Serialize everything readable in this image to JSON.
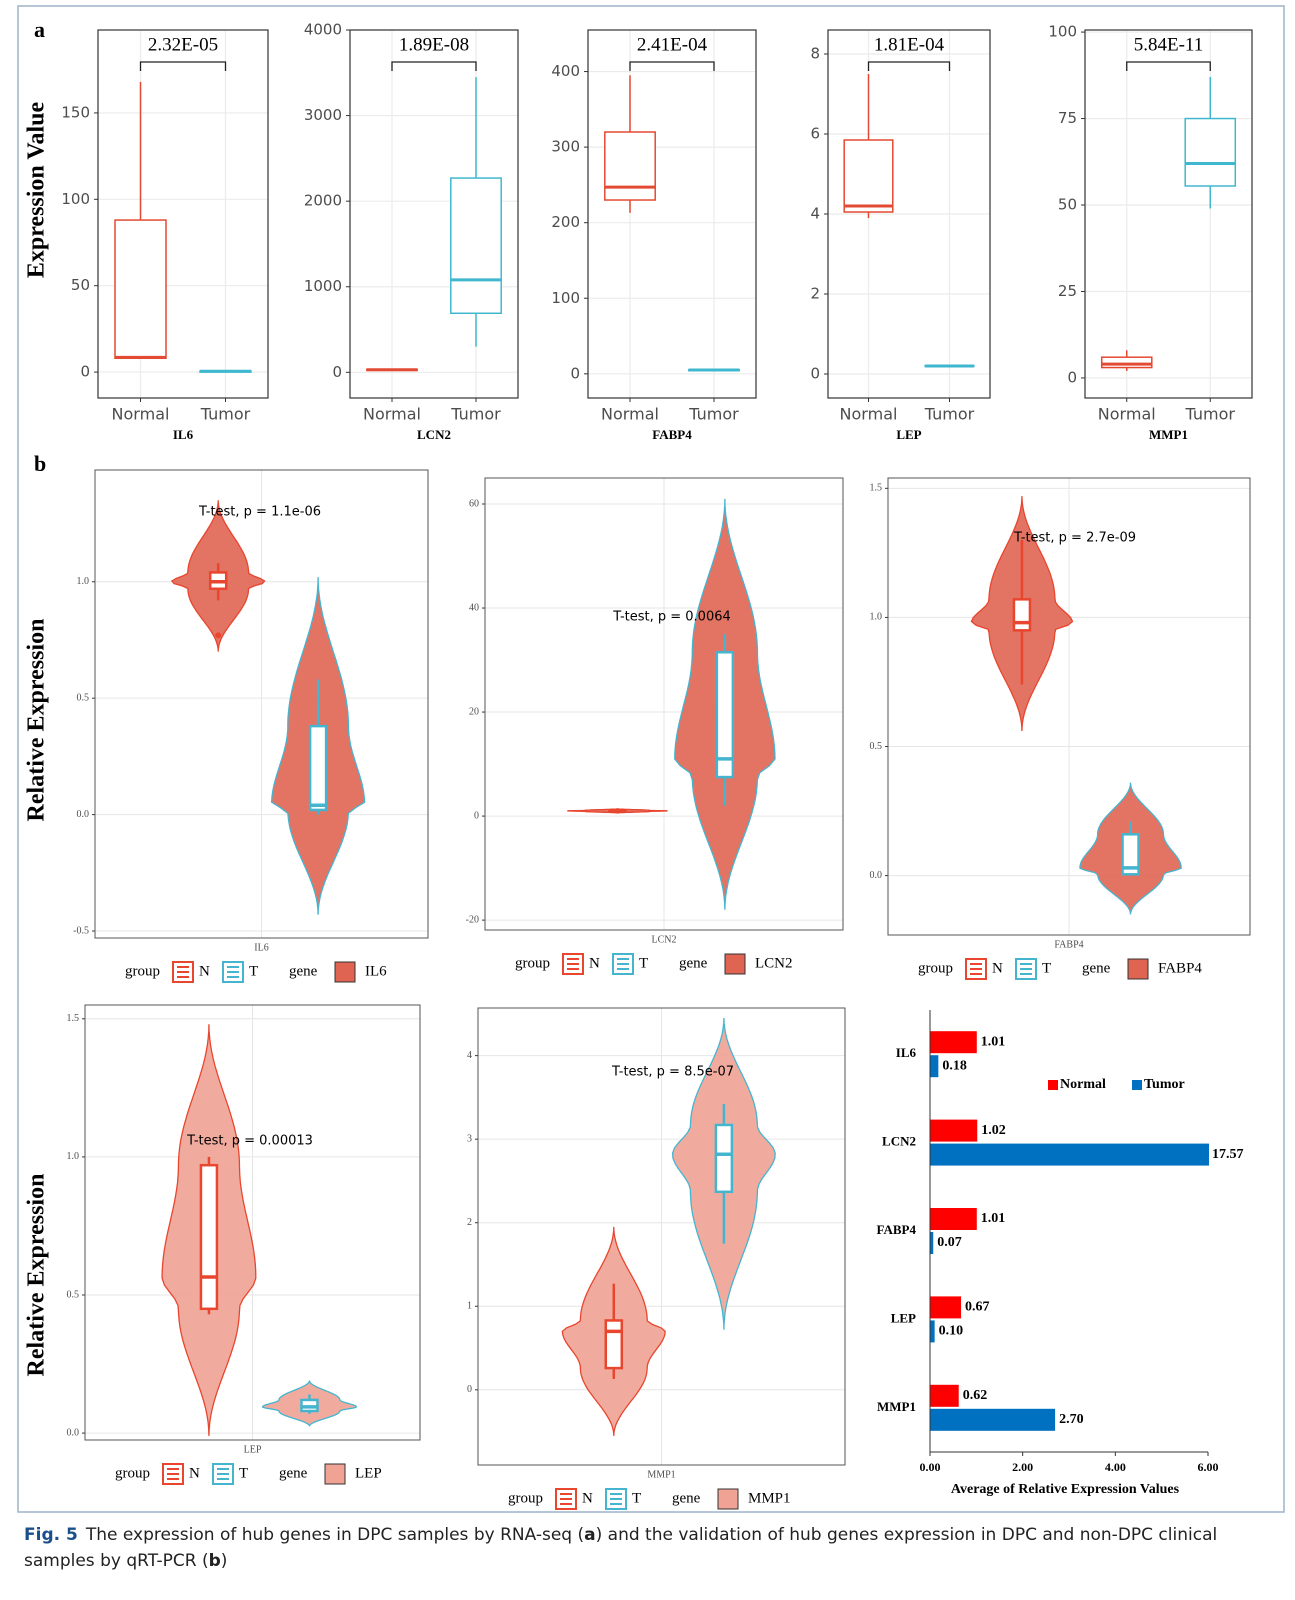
{
  "panel_labels": [
    "a",
    "b"
  ],
  "caption": {
    "label": "Fig. 5",
    "parts": [
      "The expression of hub genes in DPC samples by RNA-seq (",
      "a",
      ") and the validation of hub genes expression in DPC and non-DPC clinical samples by qRT-PCR (",
      "b",
      ")"
    ]
  },
  "chart_data": [
    {
      "type": "box",
      "ylabel": "Expression Value",
      "xlabel": "IL6",
      "p_value": "2.32E-05",
      "categories": [
        "Normal",
        "Tumor"
      ],
      "boxes": [
        {
          "color": "#e34a33",
          "min": 8,
          "q1": 8,
          "median": 8.5,
          "q3": 88,
          "max": 168
        },
        {
          "color": "#3fb8cf",
          "min": 0.3,
          "q1": 0.4,
          "median": 0.5,
          "q3": 0.6,
          "max": 0.7
        }
      ],
      "ylim": [
        -15,
        198
      ],
      "yticks": [
        0,
        50,
        100,
        150
      ],
      "grid": true
    },
    {
      "type": "box",
      "xlabel": "LCN2",
      "p_value": "1.89E-08",
      "categories": [
        "Normal",
        "Tumor"
      ],
      "boxes": [
        {
          "color": "#e34a33",
          "min": 20,
          "q1": 25,
          "median": 30,
          "q3": 35,
          "max": 40
        },
        {
          "color": "#3fb8cf",
          "min": 300,
          "q1": 690,
          "median": 1080,
          "q3": 2270,
          "max": 3450
        }
      ],
      "ylim": [
        -300,
        4000
      ],
      "yticks": [
        0,
        1000,
        2000,
        3000,
        4000
      ],
      "grid": true
    },
    {
      "type": "box",
      "xlabel": "FABP4",
      "p_value": "2.41E-04",
      "categories": [
        "Normal",
        "Tumor"
      ],
      "boxes": [
        {
          "color": "#e34a33",
          "min": 213,
          "q1": 230,
          "median": 247,
          "q3": 320,
          "max": 395
        },
        {
          "color": "#3fb8cf",
          "min": 4,
          "q1": 4.5,
          "median": 5,
          "q3": 5.5,
          "max": 6
        }
      ],
      "ylim": [
        -32,
        455
      ],
      "yticks": [
        0,
        100,
        200,
        300,
        400
      ],
      "grid": true
    },
    {
      "type": "box",
      "xlabel": "LEP",
      "p_value": "1.81E-04",
      "categories": [
        "Normal",
        "Tumor"
      ],
      "boxes": [
        {
          "color": "#e34a33",
          "min": 3.9,
          "q1": 4.05,
          "median": 4.2,
          "q3": 5.85,
          "max": 7.5
        },
        {
          "color": "#3fb8cf",
          "min": 0.18,
          "q1": 0.19,
          "median": 0.2,
          "q3": 0.21,
          "max": 0.22
        }
      ],
      "ylim": [
        -0.6,
        8.6
      ],
      "yticks": [
        0,
        2,
        4,
        6,
        8
      ],
      "grid": true
    },
    {
      "type": "box",
      "xlabel": "MMP1",
      "p_value": "5.84E-11",
      "categories": [
        "Normal",
        "Tumor"
      ],
      "boxes": [
        {
          "color": "#e34a33",
          "min": 2,
          "q1": 3,
          "median": 4,
          "q3": 6,
          "max": 8
        },
        {
          "color": "#3fb8cf",
          "min": 49,
          "q1": 55.5,
          "median": 62,
          "q3": 75,
          "max": 87
        }
      ],
      "ylim": [
        -5.8,
        100.6
      ],
      "yticks": [
        0,
        25,
        50,
        75,
        100
      ],
      "grid": true
    },
    {
      "type": "violin",
      "ylabel": "Relative Expression",
      "xlabel": "IL6",
      "annotation": "T-test, p = 1.1e-06",
      "legend": {
        "group_title": "group",
        "gene_title": "gene"
      },
      "gene": {
        "name": "IL6",
        "color": "#e06452"
      },
      "series": [
        {
          "name": "N",
          "color": "#e8462e",
          "violin_min": 0.7,
          "violin_max": 1.35,
          "min": 0.92,
          "q1": 0.97,
          "median": 1.0,
          "q3": 1.04,
          "max": 1.08,
          "outliers": [
            0.77
          ]
        },
        {
          "name": "T",
          "color": "#45b5cf",
          "violin_min": -0.43,
          "violin_max": 1.02,
          "min": 0,
          "q1": 0.02,
          "median": 0.04,
          "q3": 0.38,
          "max": 0.58
        }
      ],
      "ylim": [
        -0.53,
        1.48
      ],
      "yticks": [
        -0.5,
        {
          "value": 0,
          "label": "0.0"
        },
        0.5,
        {
          "value": 1,
          "label": "1.0"
        }
      ],
      "grid": true
    },
    {
      "type": "violin",
      "xlabel": "LCN2",
      "annotation": "T-test, p = 0.0064",
      "legend": {
        "group_title": "group",
        "gene_title": "gene"
      },
      "gene": {
        "name": "LCN2",
        "color": "#e06452"
      },
      "series": [
        {
          "name": "N",
          "color": "#e8462e",
          "violin_min": 0.6,
          "violin_max": 1.4,
          "min": 0.8,
          "q1": 0.9,
          "median": 1.0,
          "q3": 1.1,
          "max": 1.2
        },
        {
          "name": "T",
          "color": "#45b5cf",
          "violin_min": -18,
          "violin_max": 61,
          "min": 2,
          "q1": 7.5,
          "median": 11,
          "q3": 31.5,
          "max": 35
        }
      ],
      "ylim": [
        -21.9,
        65
      ],
      "yticks": [
        -20,
        0,
        20,
        40,
        60
      ],
      "grid": true
    },
    {
      "type": "violin",
      "xlabel": "FABP4",
      "annotation": "T-test, p = 2.7e-09",
      "legend": {
        "group_title": "group",
        "gene_title": "gene"
      },
      "gene": {
        "name": "FABP4",
        "color": "#e06452"
      },
      "series": [
        {
          "name": "N",
          "color": "#e8462e",
          "violin_min": 0.56,
          "violin_max": 1.47,
          "min": 0.74,
          "q1": 0.95,
          "median": 0.98,
          "q3": 1.07,
          "max": 1.3
        },
        {
          "name": "T",
          "color": "#45b5cf",
          "violin_min": -0.15,
          "violin_max": 0.36,
          "min": 0,
          "q1": 0.005,
          "median": 0.03,
          "q3": 0.16,
          "max": 0.21
        }
      ],
      "ylim": [
        -0.23,
        1.54
      ],
      "yticks": [
        {
          "value": 0,
          "label": "0.0"
        },
        0.5,
        {
          "value": 1,
          "label": "1.0"
        },
        1.5
      ],
      "grid": true
    },
    {
      "type": "violin",
      "ylabel": "Relative Expression",
      "xlabel": "LEP",
      "annotation": "T-test, p = 0.00013",
      "legend": {
        "group_title": "group",
        "gene_title": "gene"
      },
      "gene": {
        "name": "LEP",
        "color": "#f0a294"
      },
      "series": [
        {
          "name": "N",
          "color": "#e8462e",
          "violin_min": -0.01,
          "violin_max": 1.48,
          "min": 0.43,
          "q1": 0.45,
          "median": 0.565,
          "q3": 0.97,
          "max": 1.0
        },
        {
          "name": "T",
          "color": "#45b5cf",
          "violin_min": 0.025,
          "violin_max": 0.19,
          "min": 0.07,
          "q1": 0.08,
          "median": 0.095,
          "q3": 0.12,
          "max": 0.14
        }
      ],
      "ylim": [
        -0.025,
        1.55
      ],
      "yticks": [
        {
          "value": 0,
          "label": "0.0"
        },
        0.5,
        {
          "value": 1,
          "label": "1.0"
        },
        1.5
      ],
      "grid": true
    },
    {
      "type": "violin",
      "xlabel": "MMP1",
      "annotation": "T-test, p = 8.5e-07",
      "legend": {
        "group_title": "group",
        "gene_title": "gene"
      },
      "gene": {
        "name": "MMP1",
        "color": "#f0a294"
      },
      "series": [
        {
          "name": "N",
          "color": "#e8462e",
          "violin_min": -0.55,
          "violin_max": 1.95,
          "min": 0.13,
          "q1": 0.26,
          "median": 0.7,
          "q3": 0.83,
          "max": 1.27
        },
        {
          "name": "T",
          "color": "#45b5cf",
          "violin_min": 0.72,
          "violin_max": 4.45,
          "min": 1.75,
          "q1": 2.37,
          "median": 2.82,
          "q3": 3.17,
          "max": 3.42
        }
      ],
      "ylim": [
        -0.9,
        4.57
      ],
      "yticks": [
        0,
        1,
        2,
        3,
        4
      ],
      "grid": true
    },
    {
      "type": "hbar",
      "categories": [
        "IL6",
        "LCN2",
        "FABP4",
        "LEP",
        "MMP1"
      ],
      "series": [
        {
          "name": "Normal",
          "color": "#ff0000",
          "values": [
            1.01,
            1.02,
            1.01,
            0.67,
            0.62
          ],
          "value_labels": [
            "1.01",
            "1.02",
            "1.01",
            "0.67",
            "0.62"
          ]
        },
        {
          "name": "Tumor",
          "color": "#0070c0",
          "values": [
            0.18,
            17.57,
            0.07,
            0.1,
            2.7
          ],
          "value_labels": [
            "0.18",
            "17.57",
            "0.07",
            "0.10",
            "2.70"
          ]
        }
      ],
      "xlim": [
        0,
        6
      ],
      "xticks": [
        {
          "value": 0,
          "label": "0.00"
        },
        {
          "value": 2,
          "label": "2.00"
        },
        {
          "value": 4,
          "label": "4.00"
        },
        {
          "value": 6,
          "label": "6.00"
        }
      ],
      "xlabel": "Average of Relative Expression Values",
      "legend": "top-right"
    }
  ]
}
